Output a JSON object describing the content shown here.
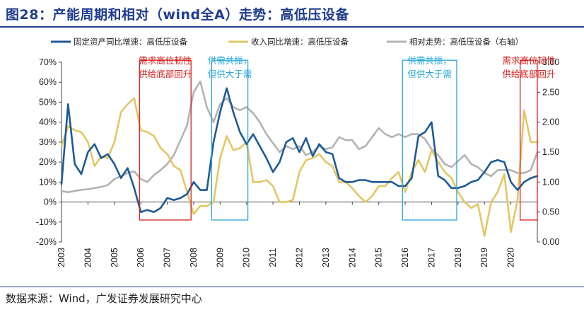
{
  "figure": {
    "title": "图28：产能周期和相对（wind全A）走势：高低压设备",
    "source": "数据来源：Wind，广发证券发展研究中心"
  },
  "colors": {
    "fixed_asset": "#1f5a96",
    "revenue": "#e3c765",
    "relative": "#b3b3b3",
    "red_box": "#d62020",
    "cyan_box": "#2aa7d8",
    "title": "#1f3c8f"
  },
  "chart_data": {
    "type": "line",
    "title": "产能周期和相对（wind全A）走势：高低压设备",
    "x_range": [
      2003,
      2021
    ],
    "x_tick_labels": [
      "2003",
      "2004",
      "2005",
      "2006",
      "2007",
      "2008",
      "2009",
      "2010",
      "2011",
      "2012",
      "2013",
      "2014",
      "2015",
      "2016",
      "2017",
      "2018",
      "2019",
      "2020"
    ],
    "y_left": {
      "range": [
        -20,
        70
      ],
      "ticks": [
        -20,
        -10,
        0,
        10,
        20,
        30,
        40,
        50,
        60,
        70
      ],
      "tick_labels": [
        "-20%",
        "-10%",
        "0%",
        "10%",
        "20%",
        "30%",
        "40%",
        "50%",
        "60%",
        "70%"
      ]
    },
    "y_right": {
      "range": [
        0,
        3
      ],
      "ticks": [
        0,
        0.5,
        1,
        1.5,
        2,
        2.5,
        3
      ],
      "tick_labels": [
        "0.00",
        "0.50",
        "1.00",
        "1.50",
        "2.00",
        "2.50",
        "3.00"
      ]
    },
    "legend": [
      "固定资产同比增速：高低压设备",
      "收入同比增速：高低压设备",
      "相对走势：高低压设备（右轴）"
    ],
    "series": [
      {
        "name": "固定资产同比增速：高低压设备",
        "axis": "left",
        "x": [
          2003.0,
          2003.25,
          2003.5,
          2003.75,
          2004.0,
          2004.25,
          2004.5,
          2004.75,
          2005.0,
          2005.25,
          2005.5,
          2005.75,
          2006.0,
          2006.25,
          2006.5,
          2006.75,
          2007.0,
          2007.25,
          2007.5,
          2007.75,
          2008.0,
          2008.25,
          2008.5,
          2008.75,
          2009.0,
          2009.25,
          2009.5,
          2009.75,
          2010.0,
          2010.25,
          2010.5,
          2010.75,
          2011.0,
          2011.25,
          2011.5,
          2011.75,
          2012.0,
          2012.25,
          2012.5,
          2012.75,
          2013.0,
          2013.25,
          2013.5,
          2013.75,
          2014.0,
          2014.25,
          2014.5,
          2014.75,
          2015.0,
          2015.25,
          2015.5,
          2015.75,
          2016.0,
          2016.25,
          2016.5,
          2016.75,
          2017.0,
          2017.25,
          2017.5,
          2017.75,
          2018.0,
          2018.25,
          2018.5,
          2018.75,
          2019.0,
          2019.25,
          2019.5,
          2019.75,
          2020.0,
          2020.25,
          2020.5,
          2020.75,
          2021.0
        ],
        "values": [
          9,
          49,
          19,
          14,
          25,
          29,
          22,
          24,
          19,
          12,
          17,
          7,
          -5,
          -4,
          -5,
          -3,
          2,
          1,
          2,
          4,
          10,
          6,
          6,
          30,
          45,
          57,
          45,
          35,
          29,
          34,
          28,
          22,
          15,
          20,
          30,
          32,
          25,
          32,
          23,
          29,
          25,
          24,
          12,
          10,
          10,
          11,
          11,
          10,
          10,
          10,
          10,
          8,
          8,
          12,
          33,
          35,
          40,
          13,
          11,
          7,
          7,
          8,
          10,
          11,
          15,
          20,
          21,
          20,
          10,
          6,
          10,
          12,
          13
        ]
      },
      {
        "name": "收入同比增速：高低压设备",
        "axis": "left",
        "x": [
          2003.0,
          2003.25,
          2003.5,
          2003.75,
          2004.0,
          2004.25,
          2004.5,
          2004.75,
          2005.0,
          2005.25,
          2005.5,
          2005.75,
          2006.0,
          2006.25,
          2006.5,
          2006.75,
          2007.0,
          2007.25,
          2007.5,
          2007.75,
          2008.0,
          2008.25,
          2008.5,
          2008.75,
          2009.0,
          2009.25,
          2009.5,
          2009.75,
          2010.0,
          2010.25,
          2010.5,
          2010.75,
          2011.0,
          2011.25,
          2011.5,
          2011.75,
          2012.0,
          2012.25,
          2012.5,
          2012.75,
          2013.0,
          2013.25,
          2013.5,
          2013.75,
          2014.0,
          2014.25,
          2014.5,
          2014.75,
          2015.0,
          2015.25,
          2015.5,
          2015.75,
          2016.0,
          2016.25,
          2016.5,
          2016.75,
          2017.0,
          2017.25,
          2017.5,
          2017.75,
          2018.0,
          2018.25,
          2018.5,
          2018.75,
          2019.0,
          2019.25,
          2019.5,
          2019.75,
          2020.0,
          2020.25,
          2020.5,
          2020.75,
          2021.0
        ],
        "values": [
          28,
          38,
          36,
          35,
          30,
          18,
          23,
          22,
          30,
          45,
          49,
          52,
          36,
          35,
          33,
          27,
          24,
          18,
          16,
          5,
          -6,
          -2,
          -2,
          0,
          22,
          33,
          26,
          27,
          30,
          10,
          10,
          11,
          8,
          0,
          0,
          1,
          15,
          21,
          22,
          24,
          20,
          18,
          10,
          10,
          7,
          3,
          0,
          3,
          8,
          8,
          12,
          15,
          5,
          15,
          21,
          15,
          26,
          20,
          15,
          12,
          5,
          0,
          -3,
          -1,
          -17,
          0,
          5,
          14,
          -15,
          1,
          46,
          30,
          30
        ]
      },
      {
        "name": "相对走势：高低压设备（右轴）",
        "axis": "right",
        "x": [
          2003.0,
          2003.25,
          2003.5,
          2003.75,
          2004.0,
          2004.25,
          2004.5,
          2004.75,
          2005.0,
          2005.25,
          2005.5,
          2005.75,
          2006.0,
          2006.25,
          2006.5,
          2006.75,
          2007.0,
          2007.25,
          2007.5,
          2007.75,
          2008.0,
          2008.25,
          2008.5,
          2008.75,
          2009.0,
          2009.25,
          2009.5,
          2009.75,
          2010.0,
          2010.25,
          2010.5,
          2010.75,
          2011.0,
          2011.25,
          2011.5,
          2011.75,
          2012.0,
          2012.25,
          2012.5,
          2012.75,
          2013.0,
          2013.25,
          2013.5,
          2013.75,
          2014.0,
          2014.25,
          2014.5,
          2014.75,
          2015.0,
          2015.25,
          2015.5,
          2015.75,
          2016.0,
          2016.25,
          2016.5,
          2016.75,
          2017.0,
          2017.25,
          2017.5,
          2017.75,
          2018.0,
          2018.25,
          2018.5,
          2018.75,
          2019.0,
          2019.25,
          2019.5,
          2019.75,
          2020.0,
          2020.25,
          2020.5,
          2020.75,
          2021.0
        ],
        "values": [
          0.85,
          0.83,
          0.85,
          0.87,
          0.88,
          0.9,
          0.92,
          0.95,
          1.05,
          1.1,
          1.15,
          1.18,
          1.05,
          1.0,
          1.12,
          1.2,
          1.3,
          1.45,
          1.7,
          1.95,
          2.5,
          2.68,
          2.25,
          2.0,
          2.3,
          2.4,
          2.25,
          2.2,
          2.25,
          2.15,
          2.0,
          1.8,
          1.65,
          1.5,
          1.6,
          1.55,
          1.6,
          1.45,
          1.5,
          1.6,
          1.55,
          1.58,
          1.75,
          1.7,
          1.7,
          1.55,
          1.6,
          1.75,
          1.9,
          1.8,
          1.75,
          1.8,
          1.75,
          1.8,
          1.8,
          1.72,
          1.55,
          1.45,
          1.3,
          1.25,
          1.35,
          1.45,
          1.3,
          1.25,
          1.15,
          1.1,
          1.2,
          1.2,
          1.2,
          1.15,
          1.15,
          1.2,
          1.5
        ]
      }
    ],
    "annotations": [
      {
        "id": "a2006",
        "style": "red",
        "lines": [
          "需求高位韧性",
          "供给底部回升"
        ],
        "x_range": [
          2005.95,
          2007.9
        ],
        "y_range": [
          -9,
          71
        ]
      },
      {
        "id": "a2009",
        "style": "cyan",
        "lines": [
          "供需共振，",
          "但供大于需"
        ],
        "x_range": [
          2008.68,
          2010.05
        ],
        "y_range": [
          -9,
          71
        ]
      },
      {
        "id": "a2016",
        "style": "cyan",
        "lines": [
          "供需共振，",
          "但供大于需"
        ],
        "x_range": [
          2015.9,
          2017.95
        ],
        "y_range": [
          -9,
          71
        ]
      },
      {
        "id": "a2020",
        "style": "red",
        "lines": [
          "需求高位韧性",
          "供给底部回升"
        ],
        "x_range": [
          2020.35,
          2021.0
        ],
        "y_range": [
          -9,
          71
        ]
      }
    ]
  }
}
